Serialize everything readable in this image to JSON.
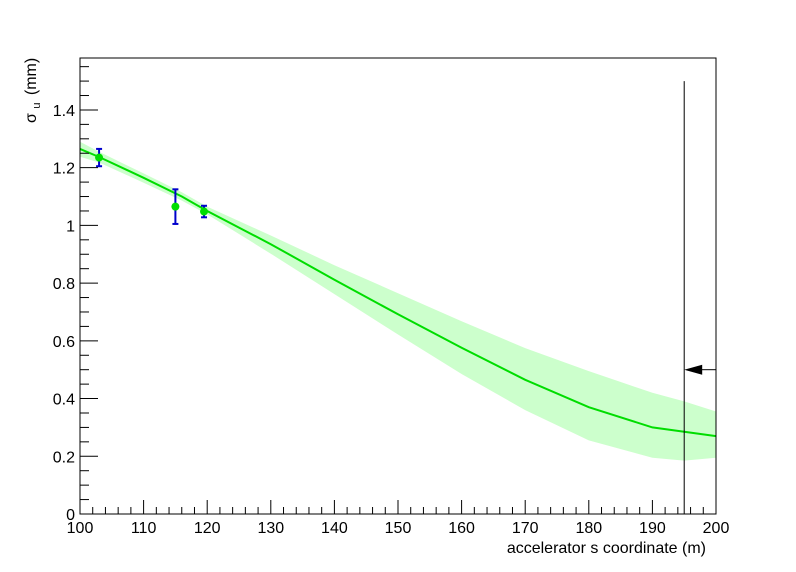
{
  "chart_data": {
    "type": "line",
    "title": "",
    "xlabel": "accelerator s coordinate (m)",
    "ylabel": "σ",
    "ylabel_subscript": "u",
    "ylabel_unit": "(mm)",
    "xlim": [
      100,
      200
    ],
    "ylim": [
      0,
      1.58
    ],
    "x_ticks": [
      100,
      110,
      120,
      130,
      140,
      150,
      160,
      170,
      180,
      190,
      200
    ],
    "y_ticks": [
      0,
      0.2,
      0.4,
      0.6,
      0.8,
      1,
      1.2,
      1.4
    ],
    "x_tick_labels": [
      "100",
      "110",
      "120",
      "130",
      "140",
      "150",
      "160",
      "170",
      "180",
      "190",
      "200"
    ],
    "y_tick_labels": [
      "0",
      "0.2",
      "0.4",
      "0.6",
      "0.8",
      "1",
      "1.2",
      "1.4"
    ],
    "grid": false,
    "series": [
      {
        "kind": "fit",
        "color": "#00dd00",
        "x": [
          100,
          103,
          110,
          116,
          120,
          130,
          140,
          150,
          160,
          170,
          180,
          190,
          195,
          200
        ],
        "y": [
          1.265,
          1.237,
          1.165,
          1.1,
          1.05,
          0.935,
          0.812,
          0.692,
          0.576,
          0.465,
          0.37,
          0.3,
          0.285,
          0.27
        ]
      },
      {
        "kind": "band",
        "color": "#ccffcc",
        "x": [
          100,
          103,
          110,
          116,
          120,
          130,
          140,
          150,
          160,
          170,
          180,
          190,
          195,
          200
        ],
        "upper": [
          1.29,
          1.255,
          1.18,
          1.115,
          1.065,
          0.965,
          0.862,
          0.765,
          0.668,
          0.575,
          0.495,
          0.42,
          0.39,
          0.355
        ],
        "lower": [
          1.238,
          1.218,
          1.148,
          1.086,
          1.038,
          0.902,
          0.762,
          0.622,
          0.485,
          0.36,
          0.255,
          0.195,
          0.185,
          0.195
        ]
      },
      {
        "kind": "points",
        "marker_color": "#00dd00",
        "error_color": "#0000cc",
        "x": [
          103,
          115,
          119.5
        ],
        "y": [
          1.235,
          1.065,
          1.048
        ],
        "yerr": [
          0.03,
          0.06,
          0.02
        ]
      }
    ],
    "annotations": [
      {
        "type": "vline",
        "x": 195,
        "y_top": 1.5
      },
      {
        "type": "arrow",
        "y": 0.5,
        "x_from": 200,
        "x_to": 195
      }
    ]
  }
}
